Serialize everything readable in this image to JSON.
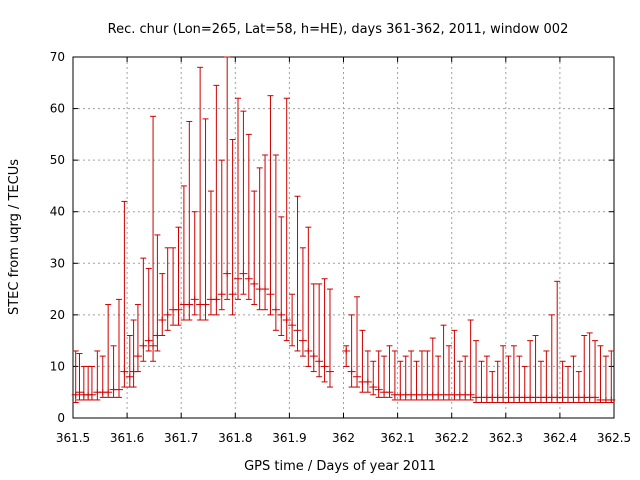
{
  "chart_data": {
    "type": "scatter",
    "title": "Rec. chur (Lon=265, Lat=58, h=HE), days 361-362, 2011, window 002",
    "xlabel": "GPS time / Days of year 2011",
    "ylabel": "STEC from uqrg / TECUs",
    "xlim": [
      361.5,
      362.5
    ],
    "ylim": [
      0,
      70
    ],
    "xticks": [
      "361.5",
      "361.6",
      "361.7",
      "361.8",
      "361.9",
      "362",
      "362.1",
      "362.2",
      "362.3",
      "362.4",
      "362.5"
    ],
    "yticks": [
      "0",
      "10",
      "20",
      "30",
      "40",
      "50",
      "60",
      "70"
    ],
    "grid": true,
    "color": "#cc0000",
    "series": [
      {
        "x": [
          361.505,
          361.512,
          361.52,
          361.528,
          361.535,
          361.545,
          361.555,
          361.565,
          361.575,
          361.585,
          361.595,
          361.605,
          361.612,
          361.62,
          361.63,
          361.64,
          361.648,
          361.656,
          361.665,
          361.675,
          361.685,
          361.695,
          361.705,
          361.715,
          361.725,
          361.735,
          361.745,
          361.755,
          361.765,
          361.775,
          361.785,
          361.795,
          361.805,
          361.815,
          361.825,
          361.835,
          361.845,
          361.855,
          361.865,
          361.875,
          361.885,
          361.895,
          361.905,
          361.915,
          361.925,
          361.935,
          361.945,
          361.955,
          361.965,
          361.975,
          362.005,
          362.015,
          362.025,
          362.035,
          362.045,
          362.055,
          362.065,
          362.075,
          362.085,
          362.095,
          362.105,
          362.115,
          362.125,
          362.135,
          362.145,
          362.155,
          362.165,
          362.175,
          362.185,
          362.195,
          362.205,
          362.215,
          362.225,
          362.235,
          362.245,
          362.255,
          362.265,
          362.275,
          362.285,
          362.295,
          362.305,
          362.315,
          362.325,
          362.335,
          362.345,
          362.355,
          362.365,
          362.375,
          362.385,
          362.395,
          362.405,
          362.415,
          362.425,
          362.435,
          362.445,
          362.455,
          362.465,
          362.475,
          362.485,
          362.495
        ],
        "y": [
          4.5,
          5,
          4.5,
          4.5,
          4.5,
          5,
          5,
          5,
          5.5,
          5.5,
          9,
          8,
          9,
          12,
          14,
          15,
          14,
          16,
          19,
          20,
          21,
          21,
          22,
          22,
          23,
          22,
          22,
          23,
          23,
          24,
          28,
          24,
          27,
          28,
          27,
          26,
          25,
          25,
          24,
          21,
          20,
          19,
          18,
          17,
          15,
          13,
          12,
          11,
          10,
          9,
          13,
          9,
          8,
          7,
          7,
          6,
          5.5,
          5,
          5,
          4.5,
          4.5,
          4.5,
          4.5,
          4.5,
          4.5,
          4.5,
          4.5,
          4.5,
          4.5,
          4.5,
          4.5,
          4.5,
          4.5,
          4.5,
          4,
          4,
          4,
          4,
          4,
          4,
          4,
          4,
          4,
          4,
          4,
          4,
          4,
          4,
          4,
          4,
          4,
          4,
          4,
          4,
          4,
          4,
          4,
          3.5,
          3.5,
          3.5
        ],
        "ymin": [
          3,
          3.5,
          3.5,
          3.5,
          3.5,
          3.5,
          4,
          4,
          4,
          4,
          6,
          6,
          6,
          9,
          11,
          13,
          11,
          13,
          16,
          17,
          18,
          18,
          19,
          19,
          20,
          19,
          19,
          20,
          20,
          21,
          23,
          20,
          23,
          24,
          23,
          22,
          21,
          21,
          20,
          17,
          16,
          15,
          14,
          13,
          12,
          10,
          9,
          8,
          7,
          6,
          10,
          6,
          6,
          5,
          5,
          4.5,
          4,
          4,
          4,
          3.5,
          3.5,
          3.5,
          3.5,
          3.5,
          3.5,
          3.5,
          3.5,
          3.5,
          3.5,
          3.5,
          3.5,
          3.5,
          3.5,
          3.5,
          3,
          3,
          3,
          3,
          3,
          3,
          3,
          3,
          3,
          3,
          3,
          3,
          3,
          3,
          3,
          3,
          3,
          3,
          3,
          3,
          3,
          3,
          3,
          3,
          3,
          3
        ],
        "ymax": [
          13,
          12.5,
          10,
          10,
          10,
          13,
          12,
          22,
          14,
          23,
          42,
          16,
          19,
          22,
          31,
          29,
          58.5,
          35.5,
          28,
          33,
          33,
          37,
          45,
          57.5,
          40,
          68,
          58,
          44,
          64.5,
          50,
          70,
          54,
          62,
          59.5,
          55,
          44,
          48.5,
          51,
          62.5,
          51,
          39,
          62,
          24,
          43,
          33,
          37,
          26,
          26,
          27,
          25,
          14,
          20,
          23.5,
          17,
          13,
          11,
          13,
          12,
          14,
          13,
          11,
          12,
          13,
          11,
          13,
          13,
          15.5,
          12,
          18,
          14,
          17,
          11,
          12,
          19,
          15,
          11,
          12,
          9,
          11,
          14,
          12,
          14,
          12,
          10,
          15,
          16,
          11,
          13,
          20,
          26.5,
          11,
          10,
          12,
          9,
          16,
          16.5,
          15,
          14,
          12,
          13
        ]
      }
    ]
  }
}
